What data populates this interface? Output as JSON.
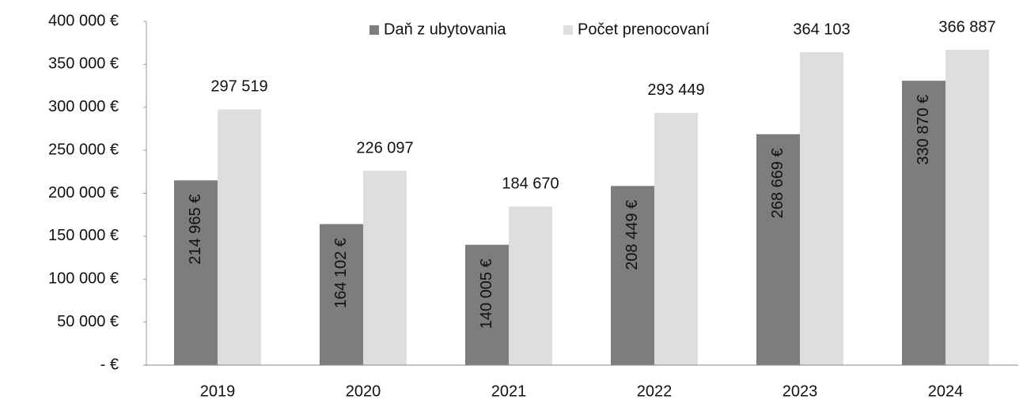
{
  "chart_data": {
    "type": "bar",
    "categories": [
      "2019",
      "2020",
      "2021",
      "2022",
      "2023",
      "2024"
    ],
    "series": [
      {
        "name": "Daň z ubytovania",
        "color": "#7d7d7d",
        "values": [
          214965,
          164102,
          140005,
          208449,
          268669,
          330870
        ],
        "value_labels": [
          "214 965 €",
          "164 102 €",
          "140 005 €",
          "208 449 €",
          "268 669 €",
          "330 870 €"
        ]
      },
      {
        "name": "Počet prenocovaní",
        "color": "#dedede",
        "values": [
          297519,
          226097,
          184670,
          293449,
          364103,
          366887
        ],
        "value_labels": [
          "297 519",
          "226 097",
          "184 670",
          "293 449",
          "364 103",
          "366 887"
        ]
      }
    ],
    "ylim": [
      0,
      400000
    ],
    "yticks": [
      {
        "value": 0,
        "label": "-   €"
      },
      {
        "value": 50000,
        "label": "50 000 €"
      },
      {
        "value": 100000,
        "label": "100 000 €"
      },
      {
        "value": 150000,
        "label": "150 000 €"
      },
      {
        "value": 200000,
        "label": "200 000 €"
      },
      {
        "value": 250000,
        "label": "250 000 €"
      },
      {
        "value": 300000,
        "label": "300 000 €"
      },
      {
        "value": 350000,
        "label": "350 000 €"
      },
      {
        "value": 400000,
        "label": "400 000 €"
      }
    ],
    "grid": false,
    "legend": "top"
  }
}
